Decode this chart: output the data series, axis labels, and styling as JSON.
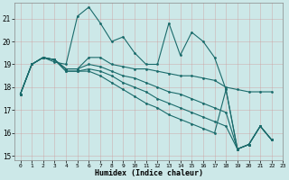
{
  "xlabel": "Humidex (Indice chaleur)",
  "bg_color": "#cce8e8",
  "grid_color": "#aacccc",
  "line_color": "#1a6b6b",
  "xlim": [
    -0.5,
    23
  ],
  "ylim": [
    14.8,
    21.7
  ],
  "yticks": [
    15,
    16,
    17,
    18,
    19,
    20,
    21
  ],
  "xticks": [
    0,
    1,
    2,
    3,
    4,
    5,
    6,
    7,
    8,
    9,
    10,
    11,
    12,
    13,
    14,
    15,
    16,
    17,
    18,
    19,
    20,
    21,
    22,
    23
  ],
  "lines": [
    [
      17.7,
      19.0,
      19.3,
      19.1,
      19.0,
      21.1,
      21.5,
      20.8,
      20.0,
      20.2,
      19.5,
      19.0,
      19.0,
      20.8,
      19.4,
      20.4,
      20.0,
      19.3,
      17.9,
      15.3,
      15.5,
      16.3,
      15.7
    ],
    [
      17.7,
      19.0,
      19.3,
      19.2,
      18.8,
      18.8,
      19.3,
      19.3,
      19.0,
      18.9,
      18.8,
      18.8,
      18.7,
      18.6,
      18.5,
      18.5,
      18.4,
      18.3,
      18.0,
      17.9,
      17.8,
      17.8,
      17.8
    ],
    [
      17.7,
      19.0,
      19.3,
      19.2,
      18.8,
      18.8,
      19.0,
      18.9,
      18.7,
      18.5,
      18.4,
      18.2,
      18.0,
      17.8,
      17.7,
      17.5,
      17.3,
      17.1,
      16.9,
      15.3,
      15.5,
      16.3,
      15.7
    ],
    [
      17.7,
      19.0,
      19.3,
      19.2,
      18.7,
      18.7,
      18.8,
      18.7,
      18.5,
      18.2,
      18.0,
      17.8,
      17.5,
      17.3,
      17.1,
      16.9,
      16.7,
      16.5,
      16.3,
      15.3,
      15.5,
      16.3,
      15.7
    ],
    [
      17.7,
      19.0,
      19.3,
      19.2,
      18.7,
      18.7,
      18.7,
      18.5,
      18.2,
      17.9,
      17.6,
      17.3,
      17.1,
      16.8,
      16.6,
      16.4,
      16.2,
      16.0,
      17.9,
      15.3,
      15.5,
      16.3,
      15.7
    ]
  ],
  "markersize": 2.0,
  "linewidth": 0.8
}
